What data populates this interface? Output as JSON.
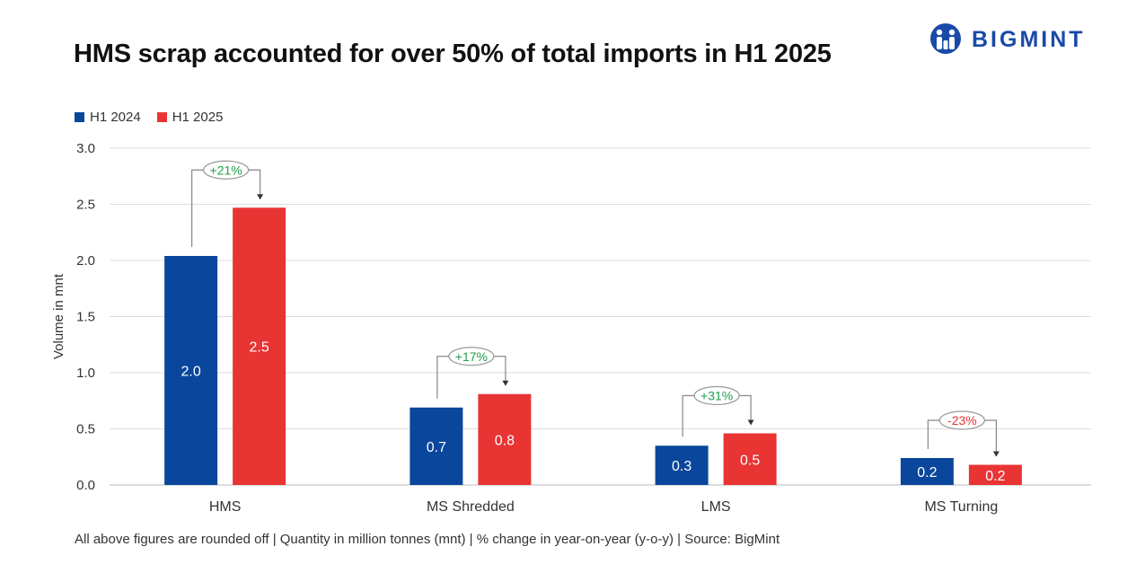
{
  "header": {
    "title": "HMS scrap accounted for over 50% of total imports in H1 2025",
    "brand": "BIGMINT"
  },
  "colors": {
    "h1_2024": "#0a469c",
    "h1_2025": "#e93434",
    "positive": "#1e9e4a",
    "negative": "#e93434",
    "grid": "#dddddd"
  },
  "chart_data": {
    "type": "bar",
    "title": "HMS scrap accounted for over 50% of total imports in H1 2025",
    "xlabel": "",
    "ylabel": "Volume in mnt",
    "ylim": [
      0,
      3.0
    ],
    "yticks": [
      "0.0",
      "0.5",
      "1.0",
      "1.5",
      "2.0",
      "2.5",
      "3.0"
    ],
    "categories": [
      "HMS",
      "MS Shredded",
      "LMS",
      "MS Turning"
    ],
    "series": [
      {
        "name": "H1 2024",
        "values": [
          2.04,
          0.69,
          0.35,
          0.24
        ],
        "labels": [
          "2.0",
          "0.7",
          "0.3",
          "0.2"
        ]
      },
      {
        "name": "H1 2025",
        "values": [
          2.47,
          0.81,
          0.46,
          0.18
        ],
        "labels": [
          "2.5",
          "0.8",
          "0.5",
          "0.2"
        ]
      }
    ],
    "changes": [
      "+21%",
      "+17%",
      "+31%",
      "-23%"
    ],
    "legend_position": "top-left",
    "grid": true
  },
  "footnote": "All above figures are rounded off | Quantity in million tonnes (mnt) | % change in year-on-year (y-o-y) | Source: BigMint"
}
